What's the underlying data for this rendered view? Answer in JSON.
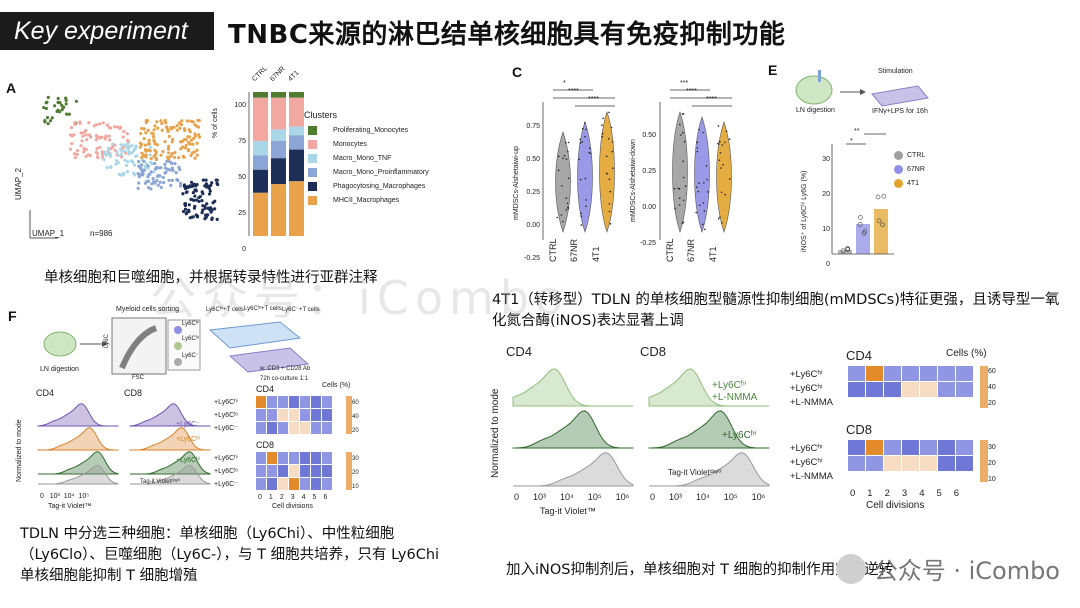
{
  "header": {
    "badge": "Key experiment",
    "title": "TNBC来源的淋巴结单核细胞具有免疫抑制功能"
  },
  "panels": {
    "a": {
      "letter": "A",
      "umap_x": "UMAP_1",
      "umap_y": "UMAP_2",
      "n_label": "n=986",
      "bar_ylabel": "% of cells",
      "bar_yticks": [
        "100",
        "75",
        "50",
        "25",
        "0"
      ],
      "bar_categories": [
        "CTRL",
        "67NR",
        "4T1"
      ],
      "legend_title": "Clusters",
      "legend": [
        {
          "label": "Proliferating_Monocytes",
          "color": "#4e7d2f"
        },
        {
          "label": "Monocytes",
          "color": "#f2a7a0"
        },
        {
          "label": "Macro_Mono_TNF",
          "color": "#a9d7e8"
        },
        {
          "label": "Macro_Mono_Proinflammatory",
          "color": "#8aa5d6"
        },
        {
          "label": "Phagocytosing_Macrophages",
          "color": "#1d2e58"
        },
        {
          "label": "MHCII_Macrophages",
          "color": "#e9a24a"
        }
      ],
      "caption": "单核细胞和巨噬细胞，并根据转录特性进行亚群注释"
    },
    "c": {
      "letter": "C",
      "ylabel_left": "mMDSCs-Alshetaiwi-up",
      "ylabel_right": "mMDSCs-Alshetaiwi-down",
      "yticks_left": [
        "0.75",
        "0.50",
        "0.25",
        "0.00",
        "-0.25"
      ],
      "yticks_right": [
        "0.50",
        "0.25",
        "0.00",
        "-0.25"
      ],
      "groups": [
        "CTRL",
        "67NR",
        "4T1"
      ],
      "sig_left": [
        "*",
        "****",
        "****"
      ],
      "sig_right": [
        "***",
        "****",
        "****"
      ],
      "colors": [
        "#9e9e9e",
        "#8f8fe6",
        "#e3a42e"
      ]
    },
    "e": {
      "letter": "E",
      "step1": "LN digestion",
      "step2": "Stimulation",
      "step3": "IFNγ+LPS for 16h",
      "ylabel": "iNOS⁺ of Ly6Cʰⁱ Ly6G (%)",
      "yticks": [
        "30",
        "20",
        "10",
        "0"
      ],
      "sig": [
        "**",
        "*"
      ],
      "legend": [
        {
          "label": "CTRL",
          "color": "#9e9e9e"
        },
        {
          "label": "67NR",
          "color": "#8f8fe6"
        },
        {
          "label": "4T1",
          "color": "#e3a42e"
        }
      ]
    },
    "c_caption": "4T1（转移型）TDLN 的单核细胞型髓源性抑制细胞(mMDSCs)特征更强，且诱导型一氧化氮合酶(iNOS)表达显著上调",
    "f": {
      "letter": "F",
      "sorting_title": "Myeloid cells sorting",
      "gates": [
        "Ly6Cʰⁱ",
        "Ly6Cˡᵒ",
        "Ly6C⁻"
      ],
      "gate_axis_y": "Ly6C",
      "gate_axis_x": "FSC",
      "coculture_labels": [
        "Ly6Cʰⁱ+T cells",
        "Ly6Cˡᵒ+T cells",
        "Ly6C⁻+T cells"
      ],
      "coculture_note1": "w. CD3 + CD28 Ab",
      "coculture_note2": "72h co-culture 1:1",
      "ln_label": "LN digestion",
      "hist_titles": [
        "CD4",
        "CD8"
      ],
      "hist_ylabel": "Normalized to mode",
      "hist_xlabel": "Tag-it Violet™",
      "hist_xticks": [
        "0",
        "10³",
        "10⁴",
        "10⁵"
      ],
      "hist_legend": [
        "+Ly6C⁻",
        "+Ly6Cˡᵒ",
        "+Ly6Cʰⁱ"
      ],
      "hist_day0": "Tag-it Violetᵈᵃʸ⁰",
      "heat_titles": [
        "CD4",
        "CD8"
      ],
      "heat_rows": [
        "+Ly6Cʰⁱ",
        "+Ly6Cˡᵒ",
        "+Ly6C⁻"
      ],
      "heat_cols": [
        "0",
        "1",
        "2",
        "3",
        "4",
        "5",
        "6"
      ],
      "heat_xlabel": "Cell divisions",
      "heat_scale_title": "Cells (%)",
      "heat_scale_cd4": [
        "60",
        "40",
        "20"
      ],
      "heat_scale_cd8": [
        "30",
        "20",
        "10"
      ],
      "caption": "TDLN 中分选三种细胞：单核细胞（Ly6Chi）、中性粒细胞（Ly6Clo）、巨噬细胞（Ly6C-），与 T 细胞共培养，只有 Ly6Chi 单核细胞能抑制 T 细胞增殖"
    },
    "g": {
      "hist_titles": [
        "CD4",
        "CD8"
      ],
      "hist_ylabel": "Normalized to mode",
      "hist_xlabel": "Tag-it Violet™",
      "hist_xticks": [
        "0",
        "10³",
        "10⁴",
        "10⁵",
        "10⁶"
      ],
      "legend_top": [
        "+Ly6Cʰⁱ",
        "+L-NMMA"
      ],
      "legend_mid": "+Ly6Cʰⁱ",
      "day0": "Tag-it Violetᵈᵃʸ⁰",
      "heat_titles": [
        "CD4",
        "CD8"
      ],
      "heat_scale_title": "Cells (%)",
      "heat_rows": [
        "+Ly6Cʰⁱ",
        "+Ly6Cʰⁱ",
        "+L-NMMA"
      ],
      "heat_cols": [
        "0",
        "1",
        "2",
        "3",
        "4",
        "5",
        "6"
      ],
      "heat_xlabel": "Cell divisions",
      "scale_cd4": [
        "60",
        "40",
        "20"
      ],
      "scale_cd8": [
        "30",
        "20",
        "10"
      ],
      "caption": "加入iNOS抑制剂后，单核细胞对 T 细胞的抑制作用完全逆转"
    }
  },
  "watermark": "公众号：iCombo",
  "logo": "公众号 · iCombo"
}
